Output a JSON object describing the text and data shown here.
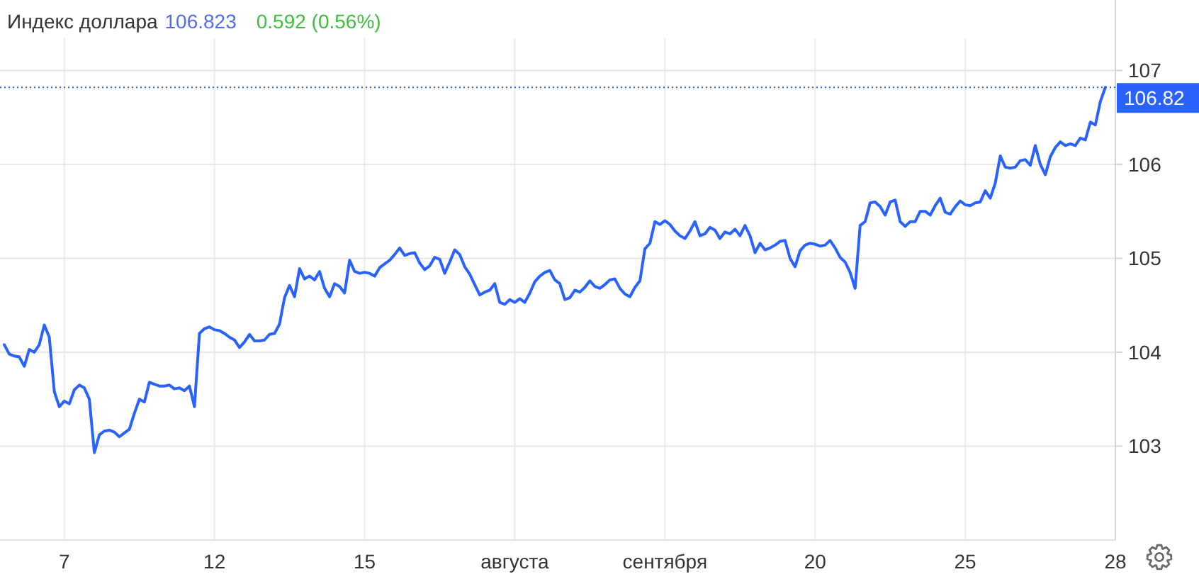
{
  "chart_data": {
    "type": "line",
    "title": "Индекс доллара",
    "subtitle": "106.823",
    "annotations": [
      "0.592 (0.56%)"
    ],
    "categories": [
      null,
      null,
      null,
      null,
      null,
      null,
      null,
      null,
      null,
      null,
      null,
      null,
      "7",
      null,
      null,
      null,
      null,
      null,
      null,
      null,
      null,
      null,
      null,
      null,
      null,
      null,
      null,
      null,
      null,
      null,
      null,
      null,
      null,
      null,
      null,
      null,
      null,
      null,
      null,
      null,
      null,
      null,
      "12",
      null,
      null,
      null,
      null,
      null,
      null,
      null,
      null,
      null,
      null,
      null,
      null,
      null,
      null,
      null,
      null,
      null,
      null,
      null,
      null,
      null,
      null,
      null,
      null,
      null,
      null,
      null,
      null,
      null,
      "15",
      null,
      null,
      null,
      null,
      null,
      null,
      null,
      null,
      null,
      null,
      null,
      null,
      null,
      null,
      null,
      null,
      null,
      null,
      null,
      null,
      null,
      null,
      null,
      null,
      null,
      null,
      null,
      null,
      null,
      "августа",
      null,
      null,
      null,
      null,
      null,
      null,
      null,
      null,
      null,
      null,
      null,
      null,
      null,
      null,
      null,
      null,
      null,
      null,
      null,
      null,
      null,
      null,
      null,
      null,
      null,
      null,
      null,
      null,
      null,
      "сентября",
      null,
      null,
      null,
      null,
      null,
      null,
      null,
      null,
      null,
      null,
      null,
      null,
      null,
      null,
      null,
      null,
      null,
      null,
      null,
      null,
      null,
      null,
      null,
      null,
      null,
      null,
      null,
      null,
      null,
      "20",
      null,
      null,
      null,
      null,
      null,
      null,
      null,
      null,
      null,
      null,
      null,
      null,
      null,
      null,
      null,
      null,
      null,
      null,
      null,
      null,
      null,
      null,
      null,
      null,
      null,
      null,
      null,
      null,
      null,
      "25",
      null,
      null,
      null,
      null,
      null,
      null,
      null,
      null,
      null,
      null,
      null,
      null,
      null,
      null,
      null,
      null,
      null,
      null,
      null,
      null,
      null,
      null,
      null,
      null,
      null,
      null,
      null,
      null,
      null,
      "28"
    ],
    "series": [
      {
        "color": "#2962ff",
        "values": [
          104.08,
          103.98,
          103.96,
          103.95,
          103.85,
          104.03,
          104.0,
          104.08,
          104.29,
          104.16,
          103.58,
          103.42,
          103.48,
          103.45,
          103.6,
          103.65,
          103.62,
          103.5,
          102.93,
          103.12,
          103.16,
          103.17,
          103.15,
          103.1,
          103.14,
          103.18,
          103.35,
          103.5,
          103.47,
          103.68,
          103.66,
          103.64,
          103.64,
          103.65,
          103.61,
          103.62,
          103.59,
          103.64,
          103.42,
          104.2,
          104.25,
          104.27,
          104.24,
          104.23,
          104.2,
          104.16,
          104.13,
          104.05,
          104.11,
          104.19,
          104.12,
          104.12,
          104.13,
          104.19,
          104.2,
          104.3,
          104.58,
          104.71,
          104.59,
          104.89,
          104.78,
          104.81,
          104.77,
          104.86,
          104.68,
          104.59,
          104.73,
          104.7,
          104.63,
          104.98,
          104.86,
          104.84,
          104.85,
          104.84,
          104.81,
          104.9,
          104.94,
          104.98,
          105.04,
          105.11,
          105.03,
          105.05,
          105.06,
          104.95,
          104.88,
          104.92,
          105.01,
          104.99,
          104.84,
          104.96,
          105.09,
          105.04,
          104.91,
          104.83,
          104.72,
          104.61,
          104.64,
          104.66,
          104.73,
          104.53,
          104.51,
          104.56,
          104.53,
          104.57,
          104.53,
          104.63,
          104.75,
          104.81,
          104.85,
          104.87,
          104.77,
          104.73,
          104.56,
          104.58,
          104.66,
          104.64,
          104.69,
          104.76,
          104.7,
          104.68,
          104.72,
          104.77,
          104.78,
          104.68,
          104.62,
          104.59,
          104.69,
          104.76,
          105.1,
          105.16,
          105.39,
          105.36,
          105.4,
          105.36,
          105.29,
          105.24,
          105.21,
          105.29,
          105.39,
          105.24,
          105.26,
          105.33,
          105.3,
          105.21,
          105.28,
          105.26,
          105.31,
          105.24,
          105.35,
          105.24,
          105.06,
          105.16,
          105.09,
          105.11,
          105.14,
          105.18,
          105.19,
          105.0,
          104.91,
          105.08,
          105.14,
          105.16,
          105.15,
          105.13,
          105.14,
          105.19,
          105.11,
          105.01,
          104.96,
          104.85,
          104.68,
          105.35,
          105.39,
          105.59,
          105.6,
          105.55,
          105.46,
          105.6,
          105.62,
          105.39,
          105.34,
          105.39,
          105.39,
          105.5,
          105.5,
          105.46,
          105.56,
          105.64,
          105.49,
          105.47,
          105.55,
          105.61,
          105.57,
          105.56,
          105.59,
          105.6,
          105.72,
          105.64,
          105.8,
          106.09,
          105.97,
          105.96,
          105.97,
          106.04,
          106.05,
          105.99,
          106.2,
          106.0,
          105.89,
          106.08,
          106.18,
          106.24,
          106.2,
          106.22,
          106.2,
          106.28,
          106.26,
          106.45,
          106.42,
          106.67,
          106.82,
          null,
          null
        ]
      }
    ],
    "ylim": [
      102,
      107.75
    ],
    "yticks": [
      103,
      104,
      105,
      106,
      107
    ],
    "grid": true,
    "ref_lines": [
      {
        "axis": "y",
        "value": 106.82,
        "label": "106.82",
        "color": "#2962ff",
        "line_style": "dotted"
      }
    ]
  }
}
